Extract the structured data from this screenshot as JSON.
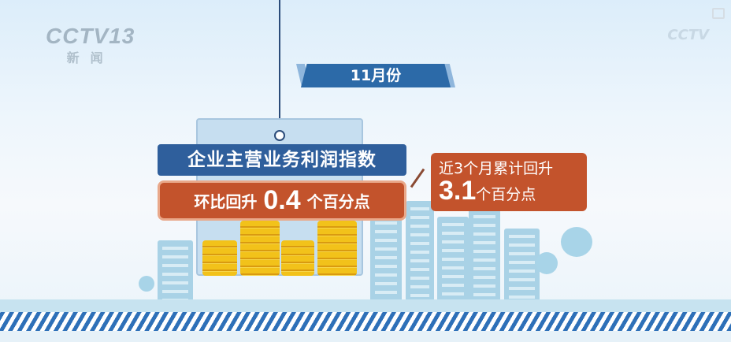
{
  "logo": {
    "channel": "CCTV13",
    "subtitle": "新闻"
  },
  "watermark": "CCTV",
  "month_label": "11月份",
  "title": "企业主营业务利润指数",
  "mom": {
    "prefix": "环比回升",
    "value": "0.4",
    "suffix": "个百分点"
  },
  "three_month": {
    "prefix": "近3个月累计回升",
    "value": "3.1",
    "suffix": "个百分点"
  },
  "colors": {
    "title_bg": "#2f5f9c",
    "highlight_bg": "#c3532c",
    "stripe": "#2e70b8"
  }
}
